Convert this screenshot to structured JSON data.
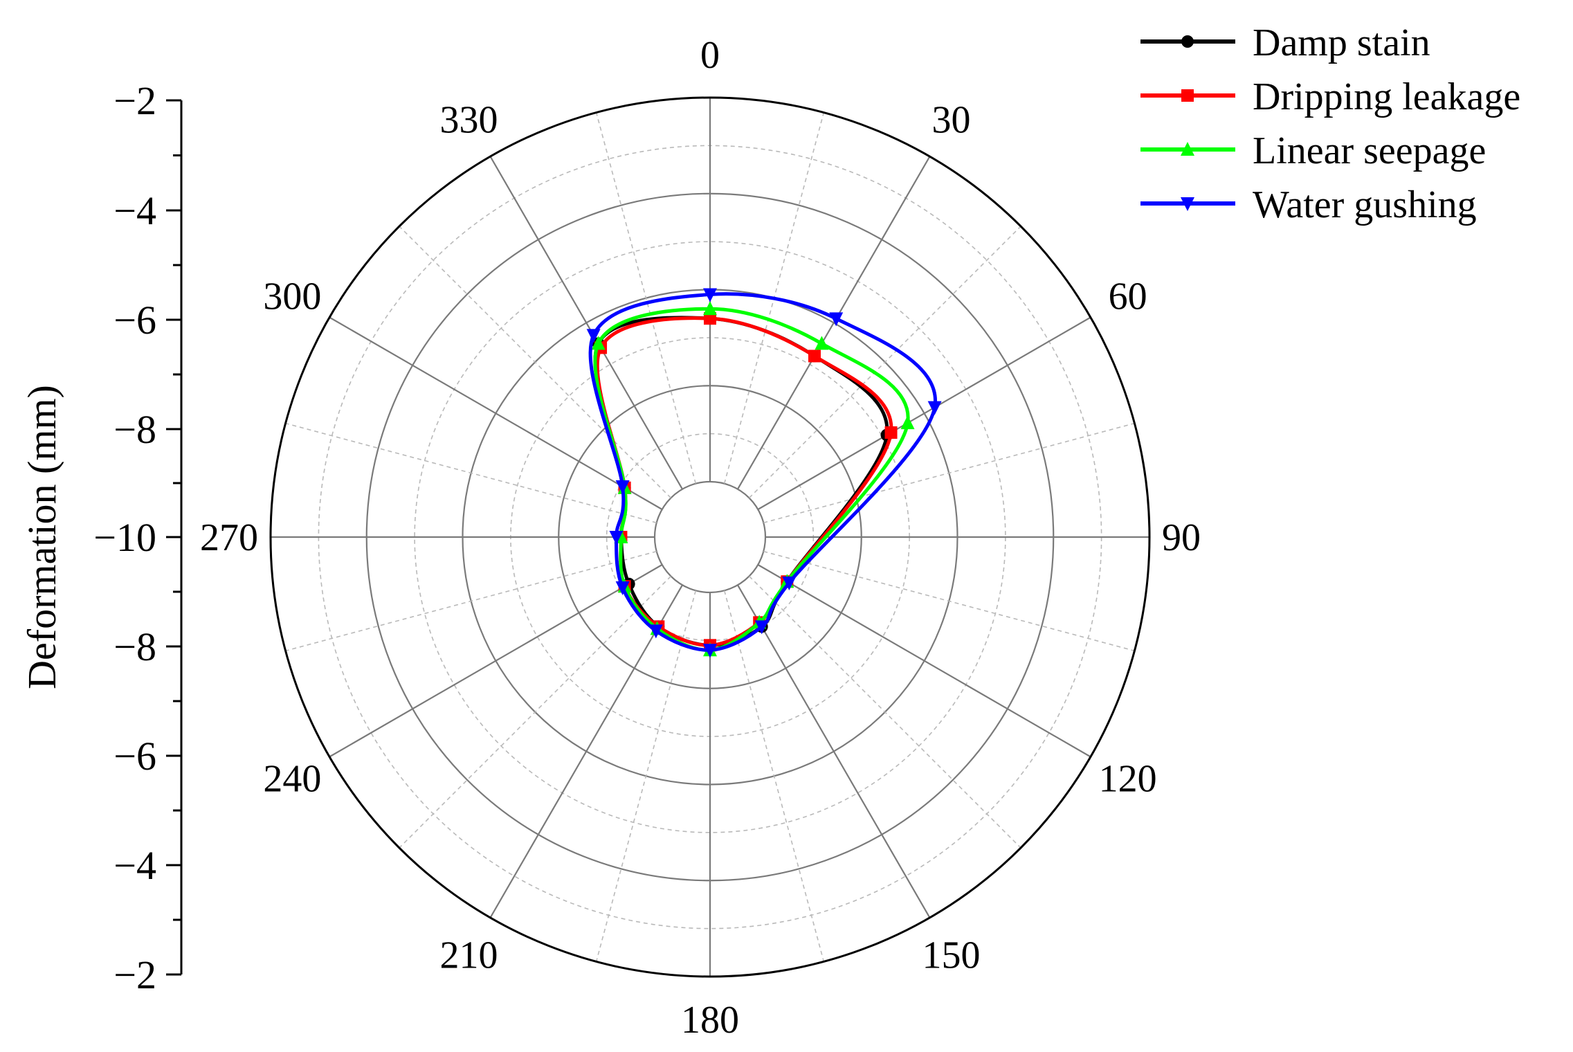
{
  "chart_data": {
    "type": "polar-line",
    "title": "",
    "ylabel": "Deformation (mm)",
    "radial_axis": {
      "range": [
        -10,
        -2
      ],
      "ticks_upper": [
        "−2",
        "−4",
        "−6",
        "−8",
        "−10"
      ],
      "ticks_lower": [
        "−8",
        "−6",
        "−4",
        "−2"
      ]
    },
    "angle_ticks": [
      "0",
      "30",
      "60",
      "90",
      "120",
      "150",
      "180",
      "210",
      "240",
      "270",
      "300",
      "330"
    ],
    "angles": [
      0,
      30,
      60,
      120,
      150,
      180,
      210,
      240,
      270,
      300,
      330
    ],
    "legend_position": "top-right",
    "series": [
      {
        "name": "Damp stain",
        "color": "#000000",
        "marker": "circle",
        "values": [
          -6.6,
          -6.8,
          -6.9,
          -9.3,
          -9.0,
          -8.9,
          -9.0,
          -9.2,
          -9.3,
          -9.1,
          -6.5
        ]
      },
      {
        "name": "Dripping leakage",
        "color": "#ff0000",
        "marker": "square",
        "values": [
          -6.6,
          -6.8,
          -6.8,
          -9.3,
          -9.1,
          -8.9,
          -9.0,
          -9.1,
          -9.3,
          -9.1,
          -6.6
        ]
      },
      {
        "name": "Linear seepage",
        "color": "#00ff00",
        "marker": "triangle-up",
        "values": [
          -6.4,
          -6.5,
          -6.4,
          -9.3,
          -9.1,
          -8.8,
          -8.95,
          -9.1,
          -9.3,
          -9.1,
          -6.5
        ]
      },
      {
        "name": "Water gushing",
        "color": "#0000ff",
        "marker": "triangle-down",
        "values": [
          -6.1,
          -5.9,
          -5.75,
          -9.25,
          -9.0,
          -8.8,
          -8.9,
          -9.05,
          -9.2,
          -9.05,
          -6.3
        ]
      }
    ]
  }
}
